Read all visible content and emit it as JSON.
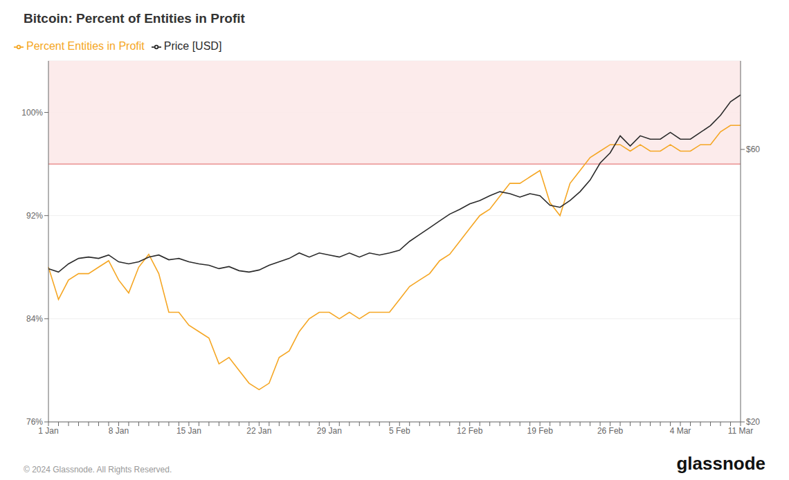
{
  "chart_data": {
    "type": "line",
    "title": "Bitcoin: Percent of Entities in Profit",
    "categories": [
      "1 Jan",
      null,
      null,
      null,
      null,
      null,
      null,
      "8 Jan",
      null,
      null,
      null,
      null,
      null,
      null,
      "15 Jan",
      null,
      null,
      null,
      null,
      null,
      null,
      "22 Jan",
      null,
      null,
      null,
      null,
      null,
      null,
      "29 Jan",
      null,
      null,
      null,
      null,
      null,
      null,
      "5 Feb",
      null,
      null,
      null,
      null,
      null,
      null,
      "12 Feb",
      null,
      null,
      null,
      null,
      null,
      null,
      "19 Feb",
      null,
      null,
      null,
      null,
      null,
      null,
      "26 Feb",
      null,
      null,
      null,
      null,
      null,
      null,
      "4 Mar",
      null,
      null,
      null,
      null,
      null,
      "11 Mar"
    ],
    "series": [
      {
        "name": "Percent Entities in Profit",
        "color": "#f5a623",
        "values": [
          88.0,
          85.5,
          87.0,
          87.5,
          87.5,
          88.0,
          88.5,
          87.0,
          86.0,
          88.0,
          89.0,
          87.5,
          84.5,
          84.5,
          83.5,
          83.0,
          82.5,
          80.5,
          81.0,
          80.0,
          79.0,
          78.5,
          79.0,
          81.0,
          81.5,
          83.0,
          84.0,
          84.5,
          84.5,
          84.0,
          84.5,
          84.0,
          84.5,
          84.5,
          84.5,
          85.5,
          86.5,
          87.0,
          87.5,
          88.5,
          89.0,
          90.0,
          91.0,
          92.0,
          92.5,
          93.5,
          94.5,
          94.5,
          95.0,
          95.5,
          93.0,
          92.0,
          94.5,
          95.5,
          96.5,
          97.0,
          97.5,
          97.5,
          97.0,
          97.5,
          97.0,
          97.0,
          97.5,
          97.0,
          97.0,
          97.5,
          97.5,
          98.5,
          99.0,
          99.0
        ]
      },
      {
        "name": "Price [USD]",
        "color": "#2a2a2a",
        "axis": "y2",
        "values": [
          42500,
          42000,
          43200,
          44000,
          44200,
          44000,
          44500,
          43500,
          43200,
          43500,
          44200,
          44500,
          43800,
          44000,
          43500,
          43200,
          43000,
          42500,
          42800,
          42200,
          42000,
          42300,
          43000,
          43500,
          44000,
          44800,
          44200,
          44800,
          44500,
          44200,
          44800,
          44200,
          44800,
          44500,
          44800,
          45200,
          46500,
          47500,
          48500,
          49500,
          50500,
          51200,
          52000,
          52500,
          53200,
          53800,
          53500,
          53000,
          53500,
          53200,
          51800,
          51500,
          52500,
          53800,
          55500,
          58000,
          59500,
          62000,
          60500,
          62000,
          61500,
          61500,
          62500,
          61500,
          61500,
          62500,
          63500,
          65000,
          67000,
          68000
        ]
      }
    ],
    "ylim": [
      76,
      104
    ],
    "yticks": [
      {
        "value": 76,
        "label": "76%"
      },
      {
        "value": 84,
        "label": "84%"
      },
      {
        "value": 92,
        "label": "92%"
      },
      {
        "value": 100,
        "label": "100%"
      }
    ],
    "y2lim": [
      20000,
      73000
    ],
    "y2ticks": [
      {
        "value": 20000,
        "label": "$20"
      },
      {
        "value": 60000,
        "label": "$60"
      }
    ],
    "grid": true,
    "legend": "top-left",
    "reference_bands": [
      {
        "y1": 96,
        "y2": 104,
        "color": "#fce8e8"
      }
    ],
    "reference_lines": [
      {
        "y": 96,
        "color": "#e06060"
      }
    ],
    "annotations": [
      "© 2024 Glassnode. All Rights Reserved.",
      "glassnode"
    ]
  }
}
